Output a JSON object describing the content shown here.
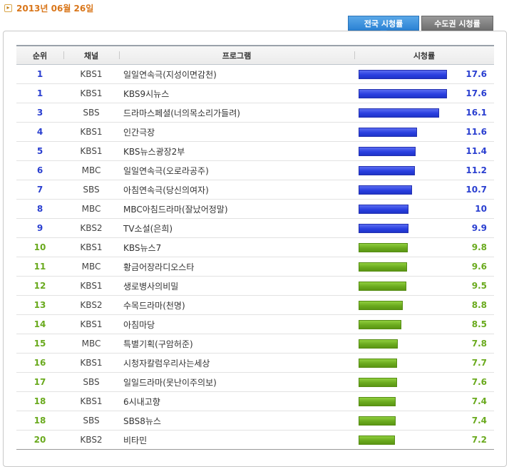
{
  "date": "2013년 06월 26일",
  "tabs": {
    "national": "전국 시청률",
    "capital": "수도권 시청률"
  },
  "headers": {
    "rank": "순위",
    "channel": "채널",
    "program": "프로그램",
    "rating": "시청률"
  },
  "colors": {
    "top_bar": "#2a3fe0",
    "other_bar": "#6aaa1e"
  },
  "rows": [
    {
      "rank": "1",
      "channel": "KBS1",
      "program": "일일연속극(지성이면감천)",
      "rating": "17.6",
      "value": 17.6,
      "tier": "blue"
    },
    {
      "rank": "1",
      "channel": "KBS1",
      "program": "KBS9시뉴스",
      "rating": "17.6",
      "value": 17.6,
      "tier": "blue"
    },
    {
      "rank": "3",
      "channel": "SBS",
      "program": "드라마스페셜(너의목소리가들려)",
      "rating": "16.1",
      "value": 16.1,
      "tier": "blue"
    },
    {
      "rank": "4",
      "channel": "KBS1",
      "program": "인간극장",
      "rating": "11.6",
      "value": 11.6,
      "tier": "blue"
    },
    {
      "rank": "5",
      "channel": "KBS1",
      "program": "KBS뉴스광장2부",
      "rating": "11.4",
      "value": 11.4,
      "tier": "blue"
    },
    {
      "rank": "6",
      "channel": "MBC",
      "program": "일일연속극(오로라공주)",
      "rating": "11.2",
      "value": 11.2,
      "tier": "blue"
    },
    {
      "rank": "7",
      "channel": "SBS",
      "program": "아침연속극(당신의여자)",
      "rating": "10.7",
      "value": 10.7,
      "tier": "blue"
    },
    {
      "rank": "8",
      "channel": "MBC",
      "program": "MBC아침드라마(잘났어정말)",
      "rating": "10",
      "value": 10.0,
      "tier": "blue"
    },
    {
      "rank": "9",
      "channel": "KBS2",
      "program": "TV소설(은희)",
      "rating": "9.9",
      "value": 9.9,
      "tier": "blue"
    },
    {
      "rank": "10",
      "channel": "KBS1",
      "program": "KBS뉴스7",
      "rating": "9.8",
      "value": 9.8,
      "tier": "green"
    },
    {
      "rank": "11",
      "channel": "MBC",
      "program": "황금어장라디오스타",
      "rating": "9.6",
      "value": 9.6,
      "tier": "green"
    },
    {
      "rank": "12",
      "channel": "KBS1",
      "program": "생로병사의비밀",
      "rating": "9.5",
      "value": 9.5,
      "tier": "green"
    },
    {
      "rank": "13",
      "channel": "KBS2",
      "program": "수목드라마(천명)",
      "rating": "8.8",
      "value": 8.8,
      "tier": "green"
    },
    {
      "rank": "14",
      "channel": "KBS1",
      "program": "아침마당",
      "rating": "8.5",
      "value": 8.5,
      "tier": "green"
    },
    {
      "rank": "15",
      "channel": "MBC",
      "program": "특별기획(구암허준)",
      "rating": "7.8",
      "value": 7.8,
      "tier": "green"
    },
    {
      "rank": "16",
      "channel": "KBS1",
      "program": "시청자칼럼우리사는세상",
      "rating": "7.7",
      "value": 7.7,
      "tier": "green"
    },
    {
      "rank": "17",
      "channel": "SBS",
      "program": "일일드라마(못난이주의보)",
      "rating": "7.6",
      "value": 7.6,
      "tier": "green"
    },
    {
      "rank": "18",
      "channel": "KBS1",
      "program": "6시내고향",
      "rating": "7.4",
      "value": 7.4,
      "tier": "green"
    },
    {
      "rank": "18",
      "channel": "SBS",
      "program": "SBS8뉴스",
      "rating": "7.4",
      "value": 7.4,
      "tier": "green"
    },
    {
      "rank": "20",
      "channel": "KBS2",
      "program": "비타민",
      "rating": "7.2",
      "value": 7.2,
      "tier": "green"
    }
  ]
}
